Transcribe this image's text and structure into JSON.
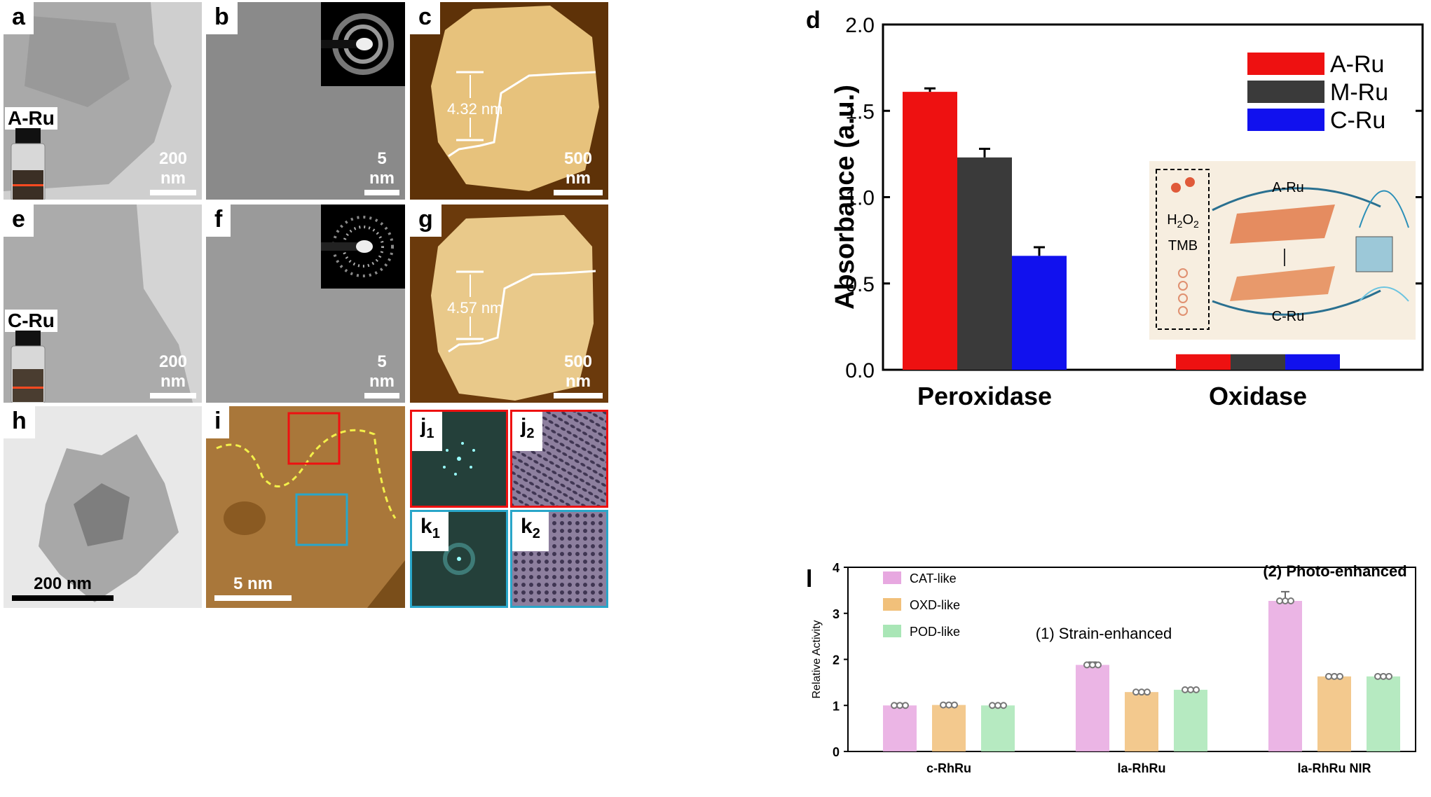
{
  "panels": {
    "a": {
      "label": "a",
      "sample": "A-Ru",
      "scale": "200 nm"
    },
    "b": {
      "label": "b",
      "scale": "5 nm"
    },
    "c": {
      "label": "c",
      "height": "4.32 nm",
      "scale": "500 nm"
    },
    "e": {
      "label": "e",
      "sample": "C-Ru",
      "scale": "200 nm"
    },
    "f": {
      "label": "f",
      "scale": "5 nm"
    },
    "g": {
      "label": "g",
      "height": "4.57 nm",
      "scale": "500 nm"
    },
    "h": {
      "label": "h",
      "scale": "200 nm"
    },
    "i": {
      "label": "i",
      "scale": "5 nm"
    },
    "j1": {
      "label": "j",
      "sub": "1"
    },
    "j2": {
      "label": "j",
      "sub": "2"
    },
    "k1": {
      "label": "k",
      "sub": "1"
    },
    "k2": {
      "label": "k",
      "sub": "2"
    }
  },
  "colors": {
    "red": "#ee1111",
    "dark": "#3a3a3a",
    "blue": "#1111ee",
    "pink": "#e7a8e0",
    "orange": "#f1c07a",
    "green": "#a9e6b6"
  },
  "chart_data": [
    {
      "panel": "d",
      "type": "bar",
      "categories": [
        "Peroxidase",
        "Oxidase"
      ],
      "series": [
        {
          "name": "A-Ru",
          "values": [
            1.61,
            0.09
          ],
          "errors": [
            0.02,
            0
          ]
        },
        {
          "name": "M-Ru",
          "values": [
            1.23,
            0.09
          ],
          "errors": [
            0.05,
            0
          ]
        },
        {
          "name": "C-Ru",
          "values": [
            0.66,
            0.09
          ],
          "errors": [
            0.05,
            0
          ]
        }
      ],
      "ylabel": "Absorbance (a.u.)",
      "ylim": [
        0,
        2.0
      ],
      "yticks": [
        "0.0",
        "0.5",
        "1.0",
        "1.5",
        "2.0"
      ],
      "legend": "top-right",
      "inset": {
        "reagent1": "H2O2",
        "reagent2": "TMB",
        "top": "A-Ru",
        "bottom": "C-Ru"
      }
    },
    {
      "panel": "l",
      "type": "bar",
      "categories": [
        "c-RhRu",
        "la-RhRu",
        "la-RhRu NIR"
      ],
      "series": [
        {
          "name": "CAT-like",
          "values": [
            1.0,
            1.88,
            3.27
          ],
          "errors": [
            0.04,
            0.06,
            0.2
          ]
        },
        {
          "name": "OXD-like",
          "values": [
            1.01,
            1.29,
            1.63
          ],
          "errors": [
            0.03,
            0.03,
            0.03
          ]
        },
        {
          "name": "POD-like",
          "values": [
            1.0,
            1.34,
            1.63
          ],
          "errors": [
            0.03,
            0.03,
            0.03
          ]
        }
      ],
      "ylabel": "Relative  Activity",
      "ylim": [
        0,
        4
      ],
      "yticks": [
        "0",
        "1",
        "2",
        "3",
        "4"
      ],
      "legend": "top-left",
      "annotations": [
        "(1) Strain-enhanced",
        "(2) Photo-enhanced"
      ]
    }
  ]
}
